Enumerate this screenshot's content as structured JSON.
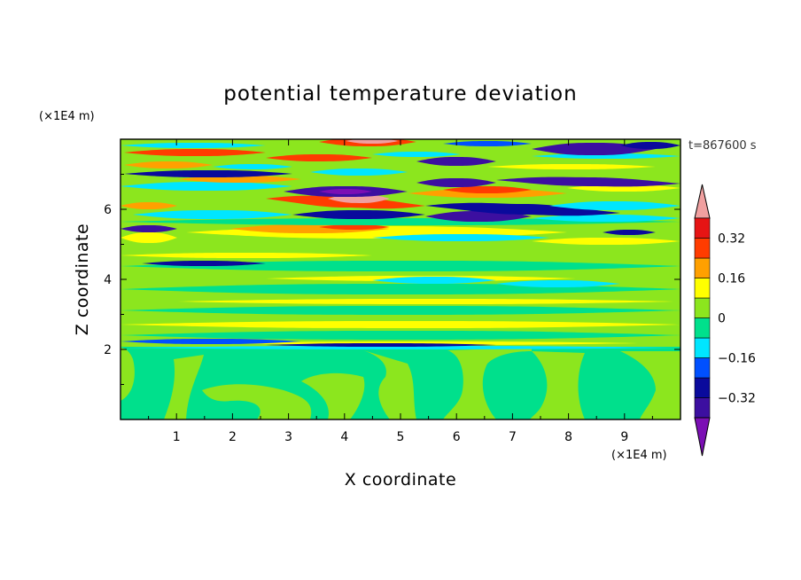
{
  "chart_data": {
    "type": "heatmap",
    "title": "potential temperature deviation",
    "xlabel": "X coordinate",
    "ylabel": "Z coordinate",
    "x_unit": "(×1E4 m)",
    "y_unit": "(×1E4 m)",
    "time_label": "t=867600 s",
    "xlim": [
      0,
      10
    ],
    "ylim": [
      0,
      8
    ],
    "x_ticks": [
      1,
      2,
      3,
      4,
      5,
      6,
      7,
      8,
      9
    ],
    "y_ticks": [
      2,
      4,
      6
    ],
    "colorbar": {
      "levels": [
        -0.4,
        -0.32,
        -0.24,
        -0.16,
        -0.08,
        0,
        0.08,
        0.16,
        0.24,
        0.32,
        0.4
      ],
      "tick_values": [
        0.32,
        0.16,
        0,
        -0.16,
        -0.32
      ],
      "tick_labels": [
        "0.32",
        "0.16",
        "0",
        "−0.16",
        "−0.32"
      ],
      "colors": [
        "#7b0fb4",
        "#3c0fa0",
        "#0a0a9c",
        "#0050ff",
        "#00e6ff",
        "#00e08c",
        "#8ce61e",
        "#ffff00",
        "#ffa000",
        "#ff3c00",
        "#e61414",
        "#f0a0a0"
      ]
    }
  }
}
